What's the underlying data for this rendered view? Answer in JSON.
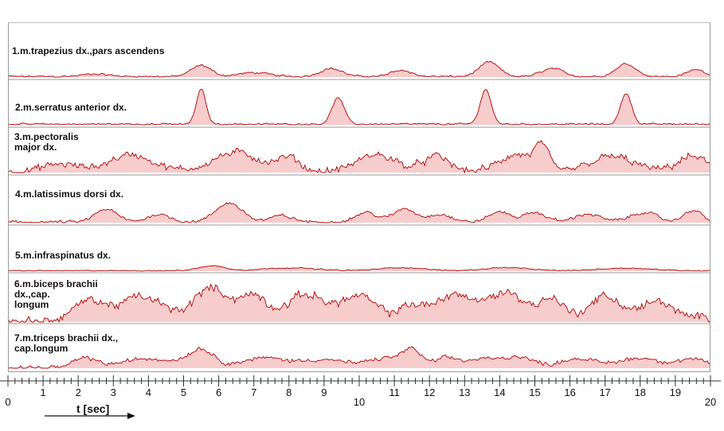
{
  "chart_data": {
    "type": "area",
    "xlabel": "t [sec]",
    "xlim": [
      0,
      20
    ],
    "x_ticks": [
      "0",
      "1",
      "2",
      "3",
      "4",
      "5",
      "6",
      "7",
      "8",
      "9",
      "10",
      "11",
      "12",
      "13",
      "14",
      "15",
      "16",
      "17",
      "18",
      "19",
      "20"
    ],
    "colors": {
      "line": "#b00000",
      "fill": "#f7cccc",
      "separator": "#9a9a9a",
      "axis": "#333333"
    },
    "series": [
      {
        "name": "1.m.trapezius dx.,pars ascendens",
        "noise": 0.04,
        "bumps": [
          [
            2.5,
            0.08,
            0.6
          ],
          [
            5.5,
            0.35,
            0.45
          ],
          [
            7.0,
            0.12,
            0.7
          ],
          [
            9.2,
            0.25,
            0.5
          ],
          [
            11.2,
            0.2,
            0.45
          ],
          [
            13.7,
            0.45,
            0.45
          ],
          [
            15.5,
            0.25,
            0.5
          ],
          [
            17.6,
            0.4,
            0.45
          ],
          [
            19.6,
            0.22,
            0.4
          ]
        ]
      },
      {
        "name": "2.m.serratus anterior dx.",
        "noise": 0.03,
        "bumps": [
          [
            5.5,
            0.95,
            0.22
          ],
          [
            9.4,
            0.72,
            0.28
          ],
          [
            13.6,
            0.95,
            0.25
          ],
          [
            17.6,
            0.85,
            0.25
          ]
        ]
      },
      {
        "name": "3.m.pectoralis\nmajor dx.",
        "noise": 0.12,
        "bumps": [
          [
            1.5,
            0.2,
            0.8
          ],
          [
            3.5,
            0.45,
            1.0
          ],
          [
            6.5,
            0.5,
            1.1
          ],
          [
            8.0,
            0.35,
            0.5
          ],
          [
            10.5,
            0.45,
            0.9
          ],
          [
            12.2,
            0.4,
            0.6
          ],
          [
            14.5,
            0.45,
            0.8
          ],
          [
            15.2,
            0.6,
            0.3
          ],
          [
            17.2,
            0.4,
            1.0
          ],
          [
            19.5,
            0.4,
            0.7
          ]
        ]
      },
      {
        "name": "4.m.latissimus dorsi dx.",
        "noise": 0.06,
        "bumps": [
          [
            2.8,
            0.4,
            0.5
          ],
          [
            4.3,
            0.25,
            0.5
          ],
          [
            6.3,
            0.6,
            0.6
          ],
          [
            7.8,
            0.2,
            0.5
          ],
          [
            10.2,
            0.3,
            0.5
          ],
          [
            11.3,
            0.42,
            0.5
          ],
          [
            12.3,
            0.25,
            0.5
          ],
          [
            14.0,
            0.32,
            0.5
          ],
          [
            15.0,
            0.3,
            0.5
          ],
          [
            16.5,
            0.25,
            0.6
          ],
          [
            18.1,
            0.3,
            0.6
          ],
          [
            19.5,
            0.38,
            0.4
          ]
        ]
      },
      {
        "name": "5.m.infraspinatus dx.",
        "noise": 0.03,
        "bumps": [
          [
            5.8,
            0.22,
            0.6
          ],
          [
            8.0,
            0.13,
            1.2
          ],
          [
            11.2,
            0.14,
            1.0
          ],
          [
            14.2,
            0.14,
            1.0
          ],
          [
            17.6,
            0.12,
            1.2
          ]
        ]
      },
      {
        "name": "6.m.biceps brachii\ndx.,cap.\nlongum",
        "noise": 0.12,
        "bumps": [
          [
            2.3,
            0.45,
            0.7
          ],
          [
            3.8,
            0.55,
            1.0
          ],
          [
            5.8,
            0.75,
            0.8
          ],
          [
            7.0,
            0.55,
            0.6
          ],
          [
            8.5,
            0.6,
            0.9
          ],
          [
            10.0,
            0.55,
            0.8
          ],
          [
            11.5,
            0.35,
            0.6
          ],
          [
            12.7,
            0.6,
            0.8
          ],
          [
            14.2,
            0.65,
            0.9
          ],
          [
            15.5,
            0.5,
            0.5
          ],
          [
            17.0,
            0.55,
            0.8
          ],
          [
            18.5,
            0.45,
            0.7
          ],
          [
            19.8,
            0.1,
            0.5
          ]
        ]
      },
      {
        "name": "7.m.triceps brachii dx.,\ncap.longum",
        "noise": 0.08,
        "bumps": [
          [
            2.2,
            0.3,
            0.5
          ],
          [
            4.0,
            0.28,
            1.2
          ],
          [
            5.5,
            0.55,
            0.6
          ],
          [
            7.3,
            0.3,
            1.0
          ],
          [
            9.0,
            0.25,
            1.0
          ],
          [
            10.8,
            0.3,
            0.8
          ],
          [
            11.5,
            0.5,
            0.4
          ],
          [
            12.5,
            0.3,
            0.6
          ],
          [
            13.5,
            0.25,
            0.6
          ],
          [
            14.5,
            0.35,
            0.7
          ],
          [
            16.2,
            0.28,
            0.8
          ],
          [
            18.0,
            0.3,
            1.0
          ],
          [
            19.5,
            0.25,
            0.6
          ]
        ]
      }
    ]
  }
}
